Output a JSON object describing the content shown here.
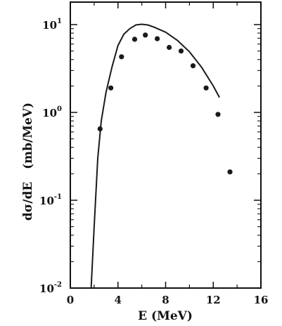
{
  "chart_data": {
    "type": "scatter",
    "xlabel": "E (MeV)",
    "ylabel": "dσ/dE   (mb/MeV)",
    "xlim": [
      0,
      16
    ],
    "ylim": [
      0.01,
      20
    ],
    "yscale": "log",
    "x_ticks": [
      0,
      4,
      8,
      12,
      16
    ],
    "x_minor_ticks": [
      2,
      6,
      10,
      14
    ],
    "y_ticks": [
      {
        "value": 0.01,
        "base": "10",
        "exp": "-2"
      },
      {
        "value": 0.1,
        "base": "10",
        "exp": "-1"
      },
      {
        "value": 1,
        "base": "10",
        "exp": "0"
      },
      {
        "value": 10,
        "base": "10",
        "exp": "1"
      }
    ],
    "grid": false,
    "series": [
      {
        "kind": "points",
        "color": "#1a1a1a",
        "x": [
          2.5,
          3.4,
          4.3,
          5.4,
          6.3,
          7.3,
          8.3,
          9.3,
          10.3,
          11.4,
          12.4,
          13.4
        ],
        "y": [
          0.65,
          1.9,
          4.3,
          6.8,
          7.6,
          6.9,
          5.5,
          5.0,
          3.4,
          1.9,
          0.95,
          0.21
        ]
      },
      {
        "kind": "line",
        "color": "#1a1a1a",
        "x": [
          1.75,
          2.0,
          2.3,
          2.6,
          3.0,
          3.5,
          4.0,
          4.5,
          5.0,
          5.5,
          6.0,
          6.5,
          7.0,
          8.0,
          9.0,
          10.0,
          11.0,
          12.0,
          12.5
        ],
        "y": [
          0.008,
          0.05,
          0.3,
          0.8,
          1.7,
          3.3,
          5.8,
          7.8,
          9.0,
          9.9,
          10.1,
          9.9,
          9.4,
          8.2,
          6.6,
          4.9,
          3.3,
          2.0,
          1.5
        ]
      }
    ]
  }
}
